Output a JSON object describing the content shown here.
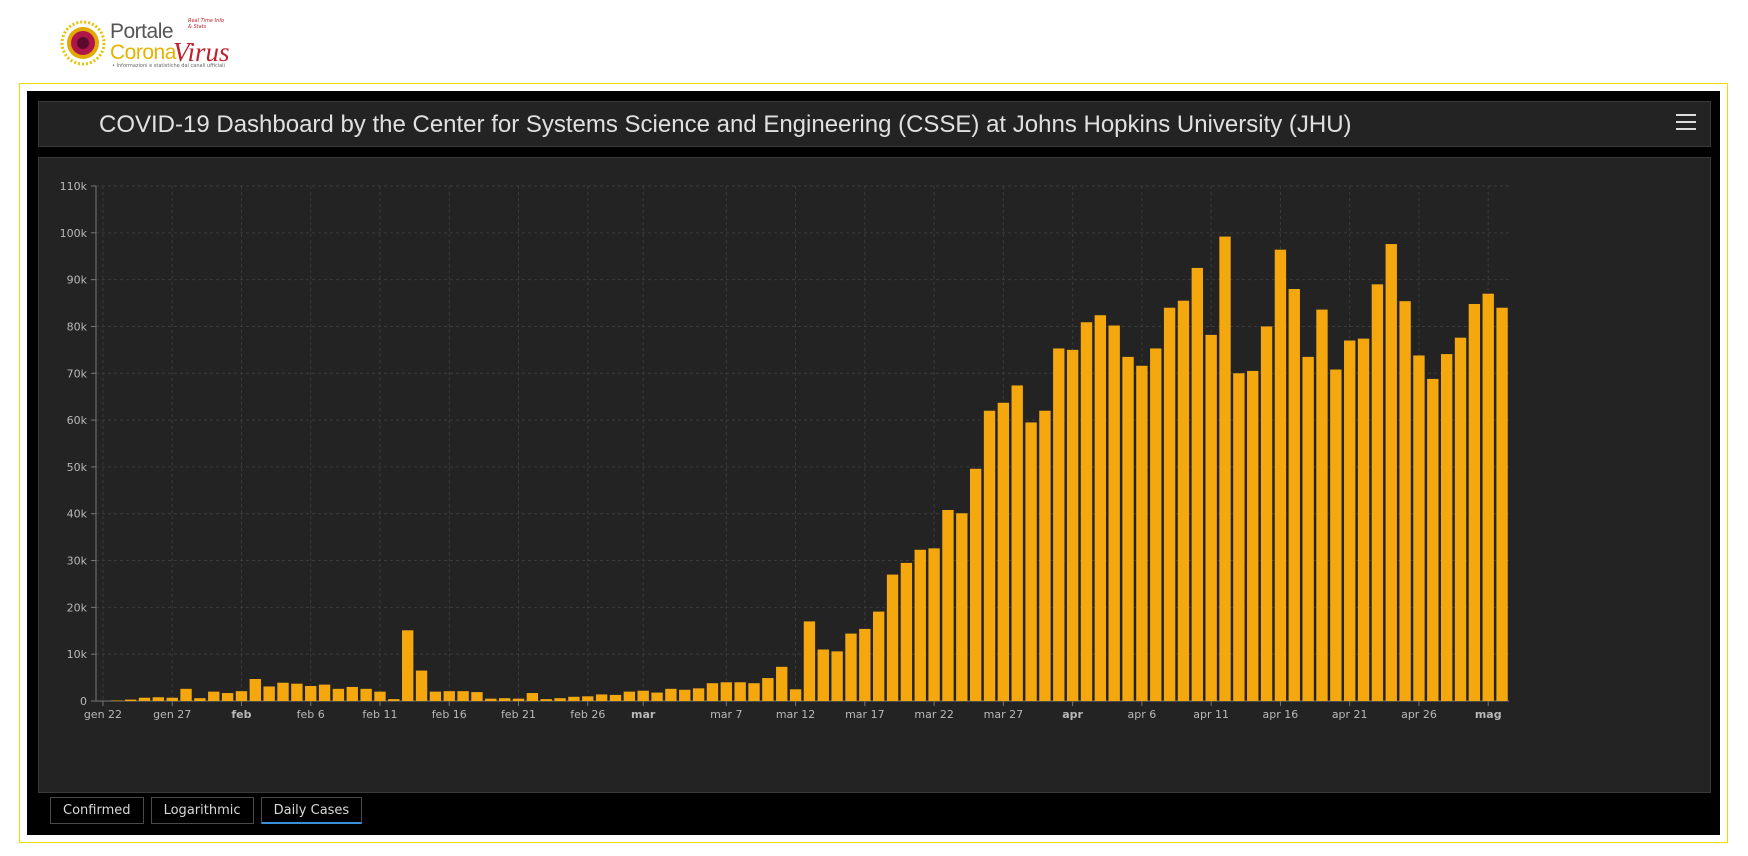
{
  "logo": {
    "word1": "Portale",
    "word2": "Corona",
    "word3": "Virus",
    "tagline": "Real Time Info & Stats",
    "subtitle": "• Informazioni e statistiche dai canali ufficiali"
  },
  "header": {
    "title": "COVID-19 Dashboard by the Center for Systems Science and Engineering (CSSE) at Johns Hopkins University (JHU)",
    "menu_icon": "hamburger-menu-icon"
  },
  "tabs": [
    {
      "label": "Confirmed",
      "active": false
    },
    {
      "label": "Logarithmic",
      "active": false
    },
    {
      "label": "Daily Cases",
      "active": true
    }
  ],
  "colors": {
    "bar": "#f5a80d",
    "panel_bg": "#232323",
    "frame_border": "#e8e000",
    "active_tab": "#3a8fd6"
  },
  "chart_data": {
    "type": "bar",
    "title": "",
    "xlabel": "",
    "ylabel": "",
    "ylim": [
      0,
      110000
    ],
    "yticks": [
      0,
      10000,
      20000,
      30000,
      40000,
      50000,
      60000,
      70000,
      80000,
      90000,
      100000,
      110000
    ],
    "ytick_labels": [
      "0",
      "10k",
      "20k",
      "30k",
      "40k",
      "50k",
      "60k",
      "70k",
      "80k",
      "90k",
      "100k",
      "110k"
    ],
    "x_start": "2020-01-22",
    "x_end": "2020-05-01",
    "xticks": [
      {
        "date": "2020-01-22",
        "label": "gen 22",
        "bold": false
      },
      {
        "date": "2020-01-27",
        "label": "gen 27",
        "bold": false
      },
      {
        "date": "2020-02-01",
        "label": "feb",
        "bold": true
      },
      {
        "date": "2020-02-06",
        "label": "feb 6",
        "bold": false
      },
      {
        "date": "2020-02-11",
        "label": "feb 11",
        "bold": false
      },
      {
        "date": "2020-02-16",
        "label": "feb 16",
        "bold": false
      },
      {
        "date": "2020-02-21",
        "label": "feb 21",
        "bold": false
      },
      {
        "date": "2020-02-26",
        "label": "feb 26",
        "bold": false
      },
      {
        "date": "2020-03-01",
        "label": "mar",
        "bold": true
      },
      {
        "date": "2020-03-07",
        "label": "mar 7",
        "bold": false
      },
      {
        "date": "2020-03-12",
        "label": "mar 12",
        "bold": false
      },
      {
        "date": "2020-03-17",
        "label": "mar 17",
        "bold": false
      },
      {
        "date": "2020-03-22",
        "label": "mar 22",
        "bold": false
      },
      {
        "date": "2020-03-27",
        "label": "mar 27",
        "bold": false
      },
      {
        "date": "2020-04-01",
        "label": "apr",
        "bold": true
      },
      {
        "date": "2020-04-06",
        "label": "apr 6",
        "bold": false
      },
      {
        "date": "2020-04-11",
        "label": "apr 11",
        "bold": false
      },
      {
        "date": "2020-04-16",
        "label": "apr 16",
        "bold": false
      },
      {
        "date": "2020-04-21",
        "label": "apr 21",
        "bold": false
      },
      {
        "date": "2020-04-26",
        "label": "apr 26",
        "bold": false
      },
      {
        "date": "2020-05-01",
        "label": "mag",
        "bold": true
      }
    ],
    "grid": true,
    "series": [
      {
        "values": [
          0,
          100,
          300,
          700,
          800,
          700,
          2600,
          600,
          2000,
          1700,
          2100,
          4700,
          3100,
          3900,
          3700,
          3200,
          3500,
          2600,
          3000,
          2600,
          2000,
          400,
          15100,
          6500,
          2000,
          2100,
          2100,
          1900,
          500,
          600,
          500,
          1700,
          400,
          600,
          900,
          1000,
          1400,
          1300,
          2000,
          2200,
          1800,
          2600,
          2400,
          2700,
          3800,
          4000,
          4000,
          3800,
          4900,
          7300,
          2500,
          17000,
          11000,
          10600,
          14400,
          15400,
          19100,
          27000,
          29500,
          32300,
          32600,
          40800,
          40100,
          49600,
          62000,
          63700,
          67400,
          59500,
          62000,
          75300,
          75000,
          80900,
          82400,
          80200,
          73500,
          71600,
          75300,
          84000,
          85500,
          92500,
          78200,
          99200,
          70000,
          70500,
          80000,
          96400,
          88000,
          73500,
          83600,
          70800,
          77000,
          77400,
          89000,
          97600,
          85400,
          73800,
          68800,
          74100,
          77600,
          84800,
          87000,
          84000
        ]
      }
    ]
  }
}
